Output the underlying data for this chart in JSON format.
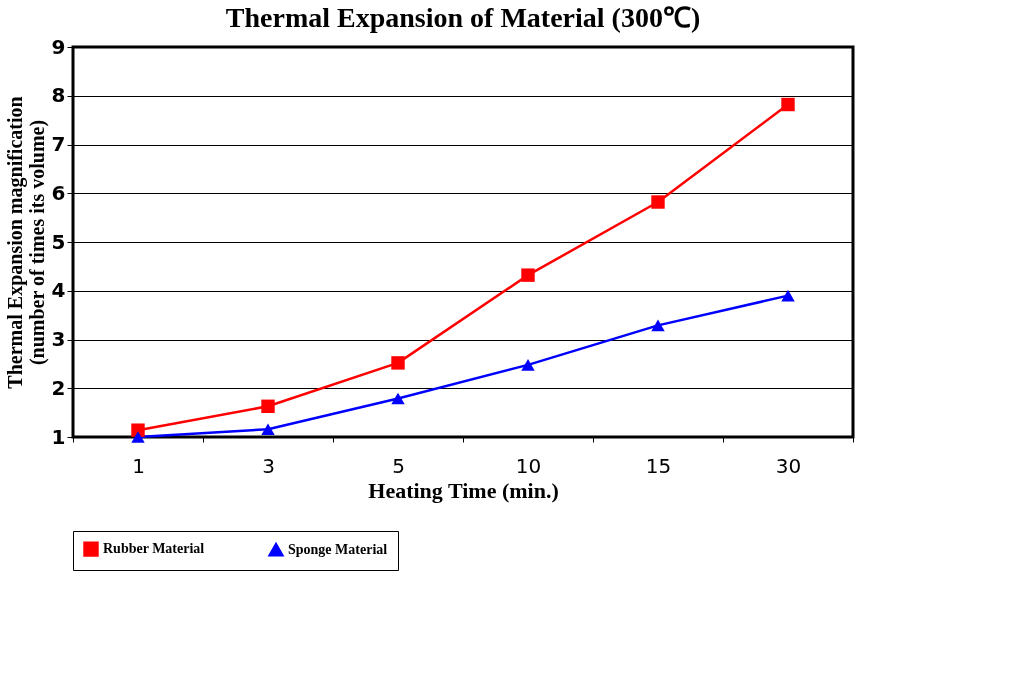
{
  "chart_data": {
    "type": "line",
    "title": "Thermal Expansion of Material (300℃)",
    "xlabel": "Heating Time (min.)",
    "ylabel": "Thermal Expansion magnification\n(number of times its volume)",
    "categories": [
      "1",
      "3",
      "5",
      "10",
      "15",
      "30"
    ],
    "series": [
      {
        "name": "Rubber Material",
        "color": "#ff0000",
        "marker": "square",
        "values": [
          1.14,
          1.63,
          2.52,
          4.32,
          5.82,
          7.82
        ]
      },
      {
        "name": "Sponge Material",
        "color": "#0000ff",
        "marker": "triangle",
        "values": [
          1.0,
          1.16,
          1.79,
          2.48,
          3.29,
          3.9
        ]
      }
    ],
    "ylim": [
      1,
      9
    ],
    "yticks": [
      1,
      2,
      3,
      4,
      5,
      6,
      7,
      8,
      9
    ],
    "grid": "y",
    "legend": "bottom",
    "line_style": "solid"
  }
}
